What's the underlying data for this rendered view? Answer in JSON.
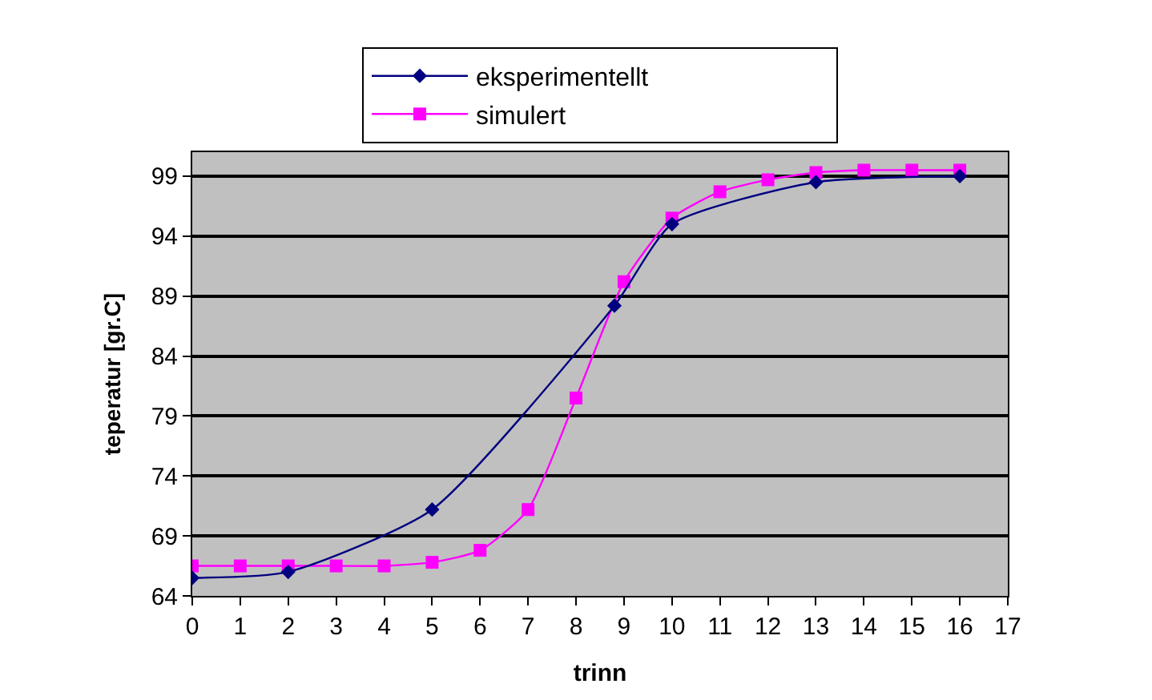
{
  "chart_data": {
    "type": "line",
    "xlabel": "trinn",
    "ylabel": "teperatur [gr.C]",
    "series": [
      {
        "name": "eksperimentellt",
        "color": "#000080",
        "marker": "diamond",
        "x": [
          0,
          2,
          5,
          8.8,
          10,
          13,
          16
        ],
        "values": [
          65.5,
          66.0,
          71.2,
          88.2,
          95.0,
          98.5,
          99.0
        ]
      },
      {
        "name": "simulert",
        "color": "#ff00ff",
        "marker": "square",
        "x": [
          0,
          1,
          2,
          3,
          4,
          5,
          6,
          7,
          8,
          9,
          10,
          11,
          12,
          13,
          14,
          15,
          16
        ],
        "values": [
          66.5,
          66.5,
          66.5,
          66.5,
          66.5,
          66.8,
          67.8,
          71.2,
          80.5,
          90.2,
          95.5,
          97.7,
          98.7,
          99.3,
          99.5,
          99.5,
          99.5
        ]
      }
    ],
    "xlim": [
      0,
      17
    ],
    "xticks": [
      0,
      1,
      2,
      3,
      4,
      5,
      6,
      7,
      8,
      9,
      10,
      11,
      12,
      13,
      14,
      15,
      16,
      17
    ],
    "ylim": [
      64,
      101
    ],
    "yticks": [
      64,
      69,
      74,
      79,
      84,
      89,
      94,
      99
    ],
    "grid": "y",
    "legend": "top",
    "line_style": "solid"
  }
}
